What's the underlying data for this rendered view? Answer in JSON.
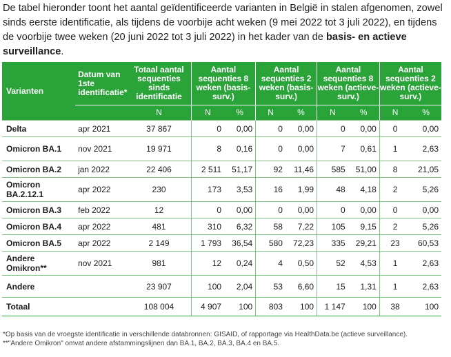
{
  "intro": {
    "p1": "De tabel hieronder toont het aantal geïdentificeerde varianten in België in stalen afgenomen, zowel sinds eerste identificatie, als tijdens de voorbije acht weken (9 mei 2022 tot 3 juli 2022), en tijdens de voorbije twee weken (20 juni 2022 tot 3 juli 2022) in het kader van de ",
    "bold": "basis- en actieve surveillance",
    "end": "."
  },
  "headers": {
    "variants": "Varianten",
    "date": "Datum van 1ste identificatie*",
    "total": "Totaal aantal sequenties sinds identificatie",
    "g1": "Aantal sequenties 8 weken (basis-surv.)",
    "g2": "Aantal sequenties 2 weken (basis-surv.)",
    "g3": "Aantal sequenties 8 weken (actieve-surv.)",
    "g4": "Aantal sequenties 2 weken (actieve-surv.)",
    "n": "N",
    "pct": "%"
  },
  "rows": [
    {
      "name": "Delta",
      "date": "apr 2021",
      "total": "37 867",
      "v": [
        "0",
        "0,00",
        "0",
        "0,00",
        "0",
        "0,00",
        "0",
        "0,00"
      ]
    },
    {
      "name": "Omicron BA.1",
      "date": "nov 2021",
      "total": "19 971",
      "v": [
        "8",
        "0,16",
        "0",
        "0,00",
        "7",
        "0,61",
        "1",
        "2,63"
      ]
    },
    {
      "name": "Omicron BA.2",
      "date": "jan 2022",
      "total": "22 406",
      "v": [
        "2 511",
        "51,17",
        "92",
        "11,46",
        "585",
        "51,00",
        "8",
        "21,05"
      ]
    },
    {
      "name": "Omicron BA.2.12.1",
      "date": "apr 2022",
      "total": "230",
      "v": [
        "173",
        "3,53",
        "16",
        "1,99",
        "48",
        "4,18",
        "2",
        "5,26"
      ]
    },
    {
      "name": "Omicron BA.3",
      "date": "feb 2022",
      "total": "12",
      "v": [
        "0",
        "0,00",
        "0",
        "0,00",
        "0",
        "0,00",
        "0",
        "0,00"
      ]
    },
    {
      "name": "Omicron BA.4",
      "date": "apr 2022",
      "total": "481",
      "v": [
        "310",
        "6,32",
        "58",
        "7,22",
        "105",
        "9,15",
        "2",
        "5,26"
      ]
    },
    {
      "name": "Omicron BA.5",
      "date": "apr 2022",
      "total": "2 149",
      "v": [
        "1 793",
        "36,54",
        "580",
        "72,23",
        "335",
        "29,21",
        "23",
        "60,53"
      ]
    },
    {
      "name": "Andere Omikron**",
      "date": "nov 2021",
      "total": "981",
      "v": [
        "12",
        "0,24",
        "4",
        "0,50",
        "52",
        "4,53",
        "1",
        "2,63"
      ]
    },
    {
      "name": "Andere",
      "date": "",
      "total": "23 907",
      "v": [
        "100",
        "2,04",
        "53",
        "6,60",
        "15",
        "1,31",
        "1",
        "2,63"
      ]
    }
  ],
  "total_row": {
    "name": "Totaal",
    "total": "108 004",
    "v": [
      "4 907",
      "100",
      "803",
      "100",
      "1 147",
      "100",
      "38",
      "100"
    ]
  },
  "footnotes": [
    "*Op basis van de vroegste identificatie in verschillende databronnen: GISAID, of rapportage via HealthData.be (actieve surveillance).",
    "**\"Andere Omikron\" omvat andere afstammingslijnen dan BA.1, BA.2, BA.3, BA.4 en BA.5."
  ]
}
